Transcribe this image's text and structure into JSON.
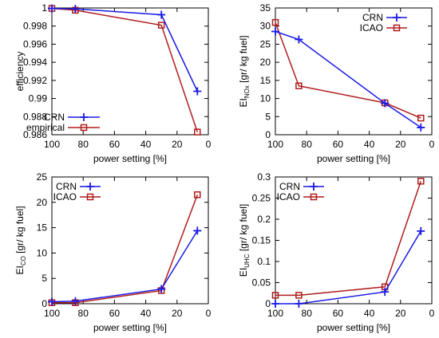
{
  "chart_data": [
    {
      "type": "line",
      "xlabel": "power setting [%]",
      "ylabel": "efficiency",
      "xlim": [
        100,
        0
      ],
      "ylim": [
        0.986,
        1.0
      ],
      "xticks": [
        100,
        80,
        60,
        40,
        20,
        0
      ],
      "yticks": [
        "0.986",
        "0.988",
        "0.99",
        "0.992",
        "0.994",
        "0.996",
        "0.998",
        "1"
      ],
      "legend_position": "bottom-left",
      "grid": false,
      "series": [
        {
          "name": "CRN",
          "color": "#1a1ae6",
          "marker": "plus",
          "x": [
            100,
            85,
            30,
            7
          ],
          "y": [
            0.99995,
            0.9999,
            0.99925,
            0.9908
          ]
        },
        {
          "name": "empirical",
          "color": "#b01c1c",
          "marker": "square",
          "x": [
            100,
            85,
            30,
            7
          ],
          "y": [
            0.99995,
            0.99975,
            0.9981,
            0.9863
          ]
        }
      ]
    },
    {
      "type": "line",
      "xlabel": "power setting [%]",
      "ylabel_main": "EI",
      "ylabel_sub": "NOx",
      "ylabel_unit": "[gr/ kg fuel]",
      "xlim": [
        100,
        0
      ],
      "ylim": [
        0,
        35
      ],
      "xticks": [
        100,
        80,
        60,
        40,
        20,
        0
      ],
      "yticks": [
        "0",
        "5",
        "10",
        "15",
        "20",
        "25",
        "30",
        "35"
      ],
      "legend_position": "top-right",
      "grid": false,
      "series": [
        {
          "name": "CRN",
          "color": "#1a1ae6",
          "marker": "plus",
          "x": [
            100,
            85,
            30,
            7
          ],
          "y": [
            28.5,
            26.3,
            8.7,
            2.0
          ]
        },
        {
          "name": "ICAO",
          "color": "#b01c1c",
          "marker": "square",
          "x": [
            100,
            85,
            30,
            7
          ],
          "y": [
            31.0,
            13.5,
            8.8,
            4.6
          ]
        }
      ]
    },
    {
      "type": "line",
      "xlabel": "power setting [%]",
      "ylabel_main": "EI",
      "ylabel_sub": "CO",
      "ylabel_unit": "[gr/ kg fuel]",
      "xlim": [
        100,
        0
      ],
      "ylim": [
        0,
        25
      ],
      "xticks": [
        100,
        80,
        60,
        40,
        20,
        0
      ],
      "yticks": [
        "0",
        "5",
        "10",
        "15",
        "20",
        "25"
      ],
      "legend_position": "top-left",
      "grid": false,
      "series": [
        {
          "name": "CRN",
          "color": "#1a1ae6",
          "marker": "plus",
          "x": [
            100,
            85,
            30,
            7
          ],
          "y": [
            0.4,
            0.5,
            2.9,
            14.4
          ]
        },
        {
          "name": "ICAO",
          "color": "#b01c1c",
          "marker": "square",
          "x": [
            100,
            85,
            30,
            7
          ],
          "y": [
            0.2,
            0.2,
            2.6,
            21.5
          ]
        }
      ]
    },
    {
      "type": "line",
      "xlabel": "power setting [%]",
      "ylabel_main": "EI",
      "ylabel_sub": "UHC",
      "ylabel_unit": "[gr/ kg fuel]",
      "xlim": [
        100,
        0
      ],
      "ylim": [
        0,
        0.3
      ],
      "xticks": [
        100,
        80,
        60,
        40,
        20,
        0
      ],
      "yticks": [
        "0",
        "0.05",
        "0.1",
        "0.15",
        "0.2",
        "0.25",
        "0.3"
      ],
      "legend_position": "top-left",
      "grid": false,
      "series": [
        {
          "name": "CRN",
          "color": "#1a1ae6",
          "marker": "plus",
          "x": [
            100,
            85,
            30,
            7
          ],
          "y": [
            0.0,
            0.0,
            0.028,
            0.172
          ]
        },
        {
          "name": "ICAO",
          "color": "#b01c1c",
          "marker": "square",
          "x": [
            100,
            85,
            30,
            7
          ],
          "y": [
            0.02,
            0.02,
            0.04,
            0.29
          ]
        }
      ]
    }
  ]
}
